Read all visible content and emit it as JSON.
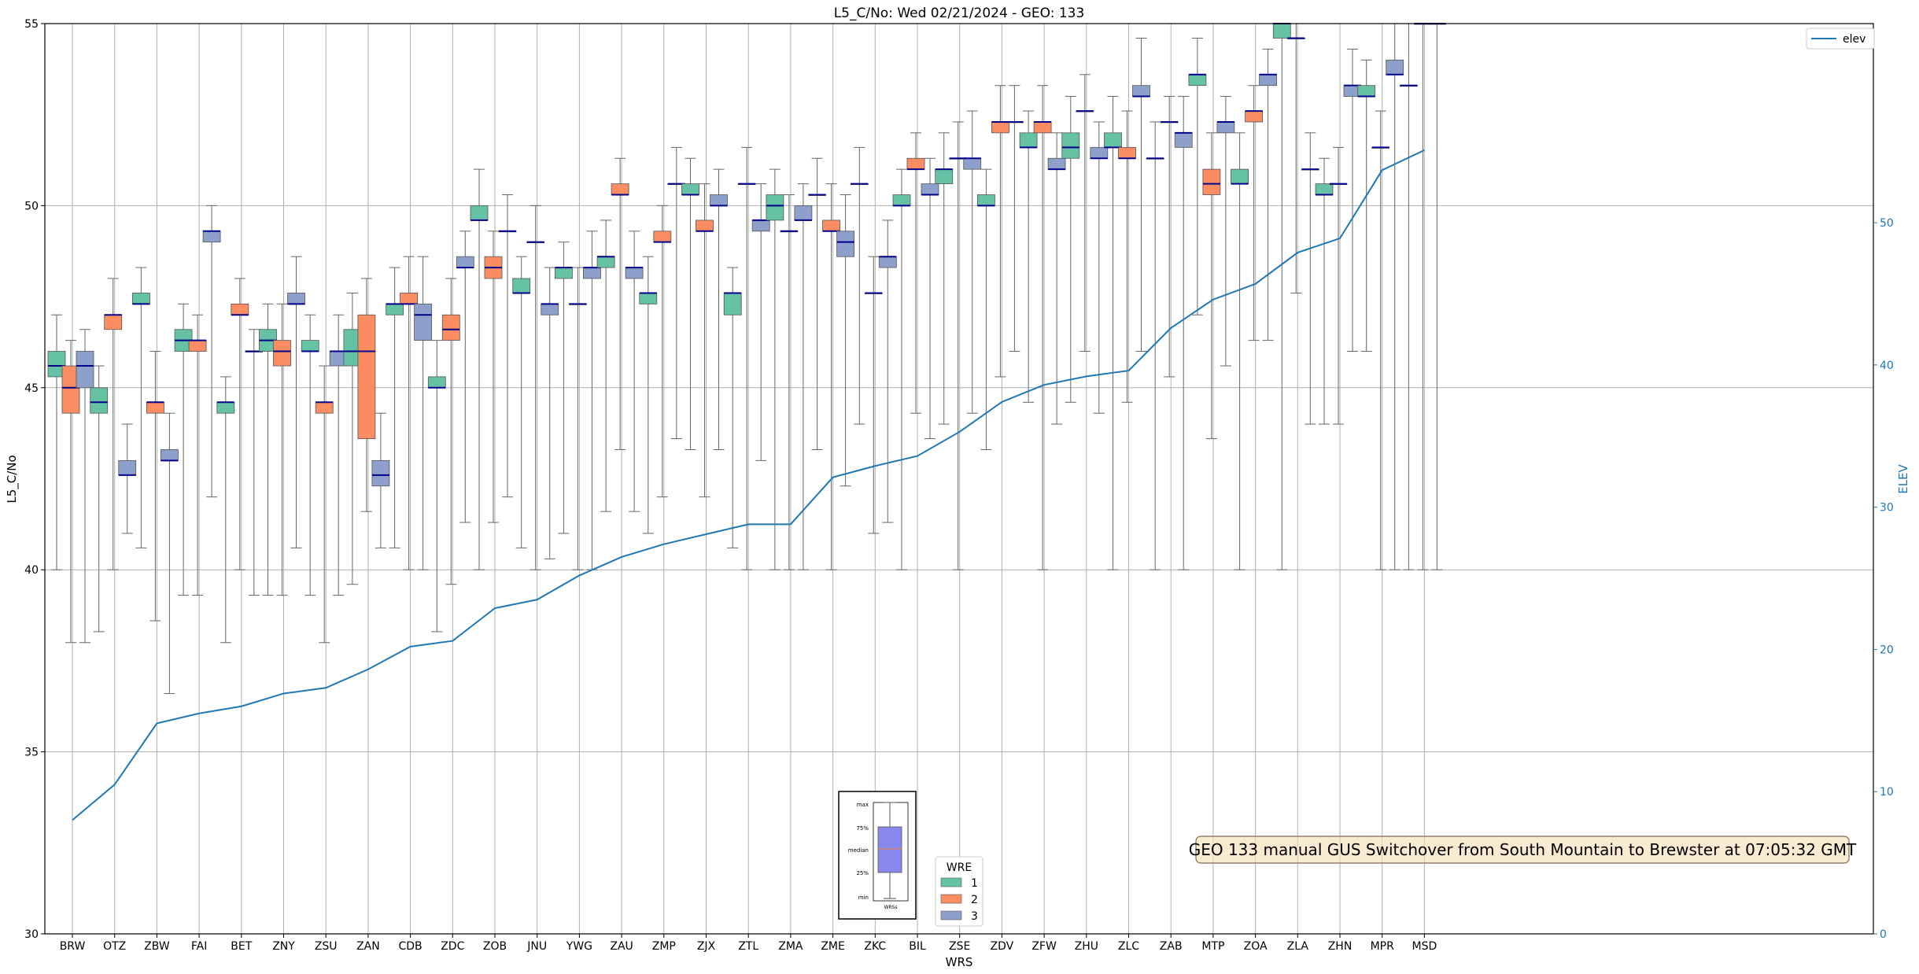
{
  "chart_data": {
    "type": "box",
    "title": "L5_C/No: Wed 02/21/2024 - GEO: 133",
    "xlabel": "WRS",
    "ylabel": "L5_C/No",
    "y2label": "ELEV",
    "ylim": [
      30,
      55
    ],
    "y2lim": [
      0,
      64
    ],
    "yticks": [
      30,
      35,
      40,
      45,
      50,
      55
    ],
    "y2ticks": [
      0,
      10,
      20,
      30,
      40,
      50
    ],
    "grid": true,
    "categories": [
      "BRW",
      "OTZ",
      "ZBW",
      "FAI",
      "BET",
      "ZNY",
      "ZSU",
      "ZAN",
      "CDB",
      "ZDC",
      "ZOB",
      "JNU",
      "YWG",
      "ZAU",
      "ZMP",
      "ZJX",
      "ZTL",
      "ZMA",
      "ZME",
      "ZKC",
      "BIL",
      "ZSE",
      "ZDV",
      "ZFW",
      "ZHU",
      "ZLC",
      "ZAB",
      "MTP",
      "ZOA",
      "ZLA",
      "ZHN",
      "MPR",
      "MSD"
    ],
    "wre_colors": {
      "1": "#66c2a5",
      "2": "#fc8d62",
      "3": "#8da0cb"
    },
    "median_color": "#00008b",
    "elev_color": "#1f77b4",
    "boxes": [
      {
        "c": "BRW",
        "wre": 1,
        "min": 40,
        "q1": 45.3,
        "med": 45.6,
        "q3": 46,
        "max": 47
      },
      {
        "c": "BRW",
        "wre": 2,
        "min": 38,
        "q1": 44.3,
        "med": 45,
        "q3": 45.6,
        "max": 46.3
      },
      {
        "c": "BRW",
        "wre": 3,
        "min": 38,
        "q1": 45,
        "med": 45.6,
        "q3": 46,
        "max": 46.6
      },
      {
        "c": "OTZ",
        "wre": 1,
        "min": 38.3,
        "q1": 44.3,
        "med": 44.6,
        "q3": 45,
        "max": 45.6
      },
      {
        "c": "OTZ",
        "wre": 2,
        "min": 40,
        "q1": 46.6,
        "med": 47,
        "q3": 47,
        "max": 48
      },
      {
        "c": "OTZ",
        "wre": 3,
        "min": 41,
        "q1": 42.6,
        "med": 42.6,
        "q3": 43,
        "max": 44
      },
      {
        "c": "ZBW",
        "wre": 1,
        "min": 40.6,
        "q1": 47.3,
        "med": 47.3,
        "q3": 47.6,
        "max": 48.3
      },
      {
        "c": "ZBW",
        "wre": 2,
        "min": 38.6,
        "q1": 44.3,
        "med": 44.6,
        "q3": 44.6,
        "max": 46
      },
      {
        "c": "ZBW",
        "wre": 3,
        "min": 36.6,
        "q1": 43,
        "med": 43,
        "q3": 43.3,
        "max": 44.3
      },
      {
        "c": "FAI",
        "wre": 1,
        "min": 39.3,
        "q1": 46,
        "med": 46.3,
        "q3": 46.6,
        "max": 47.3
      },
      {
        "c": "FAI",
        "wre": 2,
        "min": 39.3,
        "q1": 46,
        "med": 46.3,
        "q3": 46.3,
        "max": 47
      },
      {
        "c": "FAI",
        "wre": 3,
        "min": 42,
        "q1": 49,
        "med": 49.3,
        "q3": 49.3,
        "max": 50
      },
      {
        "c": "BET",
        "wre": 1,
        "min": 38,
        "q1": 44.3,
        "med": 44.6,
        "q3": 44.6,
        "max": 45.3
      },
      {
        "c": "BET",
        "wre": 2,
        "min": 40,
        "q1": 47,
        "med": 47,
        "q3": 47.3,
        "max": 48
      },
      {
        "c": "BET",
        "wre": 3,
        "min": 39.3,
        "q1": 46,
        "med": 46,
        "q3": 46,
        "max": 46.6
      },
      {
        "c": "ZNY",
        "wre": 1,
        "min": 39.3,
        "q1": 46,
        "med": 46.3,
        "q3": 46.6,
        "max": 47.3
      },
      {
        "c": "ZNY",
        "wre": 2,
        "min": 39.3,
        "q1": 45.6,
        "med": 46,
        "q3": 46.3,
        "max": 47.3
      },
      {
        "c": "ZNY",
        "wre": 3,
        "min": 40.6,
        "q1": 47.3,
        "med": 47.3,
        "q3": 47.6,
        "max": 48.6
      },
      {
        "c": "ZSU",
        "wre": 1,
        "min": 39.3,
        "q1": 46,
        "med": 46,
        "q3": 46.3,
        "max": 47
      },
      {
        "c": "ZSU",
        "wre": 2,
        "min": 38,
        "q1": 44.3,
        "med": 44.6,
        "q3": 44.6,
        "max": 45.6
      },
      {
        "c": "ZSU",
        "wre": 3,
        "min": 39.3,
        "q1": 45.6,
        "med": 46,
        "q3": 46,
        "max": 47
      },
      {
        "c": "ZAN",
        "wre": 1,
        "min": 39.6,
        "q1": 45.6,
        "med": 46,
        "q3": 46.6,
        "max": 47.6
      },
      {
        "c": "ZAN",
        "wre": 2,
        "min": 41.6,
        "q1": 43.6,
        "med": 46,
        "q3": 47,
        "max": 48
      },
      {
        "c": "ZAN",
        "wre": 3,
        "min": 40.6,
        "q1": 42.3,
        "med": 42.6,
        "q3": 43,
        "max": 44.3
      },
      {
        "c": "CDB",
        "wre": 1,
        "min": 40.6,
        "q1": 47,
        "med": 47.3,
        "q3": 47.3,
        "max": 48.3
      },
      {
        "c": "CDB",
        "wre": 2,
        "min": 40,
        "q1": 47.3,
        "med": 47.3,
        "q3": 47.6,
        "max": 48.6
      },
      {
        "c": "CDB",
        "wre": 3,
        "min": 40,
        "q1": 46.3,
        "med": 47,
        "q3": 47.3,
        "max": 48.6
      },
      {
        "c": "ZDC",
        "wre": 1,
        "min": 38.3,
        "q1": 45,
        "med": 45,
        "q3": 45.3,
        "max": 46.3
      },
      {
        "c": "ZDC",
        "wre": 2,
        "min": 39.6,
        "q1": 46.3,
        "med": 46.6,
        "q3": 47,
        "max": 48
      },
      {
        "c": "ZDC",
        "wre": 3,
        "min": 41.3,
        "q1": 48.3,
        "med": 48.3,
        "q3": 48.6,
        "max": 49.3
      },
      {
        "c": "ZOB",
        "wre": 1,
        "min": 40,
        "q1": 49.6,
        "med": 49.6,
        "q3": 50,
        "max": 51
      },
      {
        "c": "ZOB",
        "wre": 2,
        "min": 41.3,
        "q1": 48,
        "med": 48.3,
        "q3": 48.6,
        "max": 49.3
      },
      {
        "c": "ZOB",
        "wre": 3,
        "min": 42,
        "q1": 49.3,
        "med": 49.3,
        "q3": 49.3,
        "max": 50.3
      },
      {
        "c": "JNU",
        "wre": 1,
        "min": 40.6,
        "q1": 47.6,
        "med": 47.6,
        "q3": 48,
        "max": 48.6
      },
      {
        "c": "JNU",
        "wre": 2,
        "min": 40,
        "q1": 49,
        "med": 49,
        "q3": 49,
        "max": 50
      },
      {
        "c": "JNU",
        "wre": 3,
        "min": 40.3,
        "q1": 47,
        "med": 47.3,
        "q3": 47.3,
        "max": 48.3
      },
      {
        "c": "YWG",
        "wre": 1,
        "min": 41,
        "q1": 48,
        "med": 48.3,
        "q3": 48.3,
        "max": 49
      },
      {
        "c": "YWG",
        "wre": 2,
        "min": 40,
        "q1": 47.3,
        "med": 47.3,
        "q3": 47.3,
        "max": 48.3
      },
      {
        "c": "YWG",
        "wre": 3,
        "min": 40,
        "q1": 48,
        "med": 48.3,
        "q3": 48.3,
        "max": 49.3
      },
      {
        "c": "ZAU",
        "wre": 1,
        "min": 41.6,
        "q1": 48.3,
        "med": 48.6,
        "q3": 48.6,
        "max": 49.6
      },
      {
        "c": "ZAU",
        "wre": 2,
        "min": 43.3,
        "q1": 50.3,
        "med": 50.3,
        "q3": 50.6,
        "max": 51.3
      },
      {
        "c": "ZAU",
        "wre": 3,
        "min": 41.6,
        "q1": 48,
        "med": 48.3,
        "q3": 48.3,
        "max": 49.3
      },
      {
        "c": "ZMP",
        "wre": 1,
        "min": 41,
        "q1": 47.3,
        "med": 47.6,
        "q3": 47.6,
        "max": 48.6
      },
      {
        "c": "ZMP",
        "wre": 2,
        "min": 42,
        "q1": 49,
        "med": 49,
        "q3": 49.3,
        "max": 50
      },
      {
        "c": "ZMP",
        "wre": 3,
        "min": 43.6,
        "q1": 50.6,
        "med": 50.6,
        "q3": 50.6,
        "max": 51.6
      },
      {
        "c": "ZJX",
        "wre": 1,
        "min": 43.3,
        "q1": 50.3,
        "med": 50.3,
        "q3": 50.6,
        "max": 51.3
      },
      {
        "c": "ZJX",
        "wre": 2,
        "min": 42,
        "q1": 49.3,
        "med": 49.3,
        "q3": 49.6,
        "max": 50.6
      },
      {
        "c": "ZJX",
        "wre": 3,
        "min": 43.3,
        "q1": 50,
        "med": 50,
        "q3": 50.3,
        "max": 51
      },
      {
        "c": "ZTL",
        "wre": 1,
        "min": 40.6,
        "q1": 47,
        "med": 47.6,
        "q3": 47.6,
        "max": 48.3
      },
      {
        "c": "ZTL",
        "wre": 2,
        "min": 40,
        "q1": 50.6,
        "med": 50.6,
        "q3": 50.6,
        "max": 51.6
      },
      {
        "c": "ZTL",
        "wre": 3,
        "min": 43,
        "q1": 49.3,
        "med": 49.6,
        "q3": 49.6,
        "max": 50.6
      },
      {
        "c": "ZMA",
        "wre": 1,
        "min": 40,
        "q1": 49.6,
        "med": 50,
        "q3": 50.3,
        "max": 51
      },
      {
        "c": "ZMA",
        "wre": 2,
        "min": 40,
        "q1": 49.3,
        "med": 49.3,
        "q3": 49.3,
        "max": 50.3
      },
      {
        "c": "ZMA",
        "wre": 3,
        "min": 40,
        "q1": 49.6,
        "med": 49.6,
        "q3": 50,
        "max": 50.6
      },
      {
        "c": "ZME",
        "wre": 1,
        "min": 43.3,
        "q1": 50.3,
        "med": 50.3,
        "q3": 50.3,
        "max": 51.3
      },
      {
        "c": "ZME",
        "wre": 2,
        "min": 40,
        "q1": 49.3,
        "med": 49.3,
        "q3": 49.6,
        "max": 50.6
      },
      {
        "c": "ZME",
        "wre": 3,
        "min": 42.3,
        "q1": 48.6,
        "med": 49,
        "q3": 49.3,
        "max": 50.3
      },
      {
        "c": "ZKC",
        "wre": 1,
        "min": 44,
        "q1": 50.6,
        "med": 50.6,
        "q3": 50.6,
        "max": 51.6
      },
      {
        "c": "ZKC",
        "wre": 2,
        "min": 41,
        "q1": 47.6,
        "med": 47.6,
        "q3": 47.6,
        "max": 48.6
      },
      {
        "c": "ZKC",
        "wre": 3,
        "min": 41.3,
        "q1": 48.3,
        "med": 48.6,
        "q3": 48.6,
        "max": 49.6
      },
      {
        "c": "BIL",
        "wre": 1,
        "min": 40,
        "q1": 50,
        "med": 50,
        "q3": 50.3,
        "max": 51
      },
      {
        "c": "BIL",
        "wre": 2,
        "min": 44.3,
        "q1": 51,
        "med": 51,
        "q3": 51.3,
        "max": 52
      },
      {
        "c": "BIL",
        "wre": 3,
        "min": 43.6,
        "q1": 50.3,
        "med": 50.3,
        "q3": 50.6,
        "max": 51.3
      },
      {
        "c": "ZSE",
        "wre": 1,
        "min": 44,
        "q1": 50.6,
        "med": 51,
        "q3": 51,
        "max": 52
      },
      {
        "c": "ZSE",
        "wre": 2,
        "min": 40,
        "q1": 51.3,
        "med": 51.3,
        "q3": 51.3,
        "max": 52.3
      },
      {
        "c": "ZSE",
        "wre": 3,
        "min": 44.3,
        "q1": 51,
        "med": 51.3,
        "q3": 51.3,
        "max": 52.6
      },
      {
        "c": "ZDV",
        "wre": 1,
        "min": 43.3,
        "q1": 50,
        "med": 50,
        "q3": 50.3,
        "max": 51
      },
      {
        "c": "ZDV",
        "wre": 2,
        "min": 45.3,
        "q1": 52,
        "med": 52.3,
        "q3": 52.3,
        "max": 53.3
      },
      {
        "c": "ZDV",
        "wre": 3,
        "min": 46,
        "q1": 52.3,
        "med": 52.3,
        "q3": 52.3,
        "max": 53.3
      },
      {
        "c": "ZFW",
        "wre": 1,
        "min": 44.6,
        "q1": 51.6,
        "med": 51.6,
        "q3": 52,
        "max": 52.6
      },
      {
        "c": "ZFW",
        "wre": 2,
        "min": 40,
        "q1": 52,
        "med": 52.3,
        "q3": 52.3,
        "max": 53.3
      },
      {
        "c": "ZFW",
        "wre": 3,
        "min": 44,
        "q1": 51,
        "med": 51,
        "q3": 51.3,
        "max": 52
      },
      {
        "c": "ZHU",
        "wre": 1,
        "min": 44.6,
        "q1": 51.3,
        "med": 51.6,
        "q3": 52,
        "max": 53
      },
      {
        "c": "ZHU",
        "wre": 2,
        "min": 46,
        "q1": 52.6,
        "med": 52.6,
        "q3": 52.6,
        "max": 53.6
      },
      {
        "c": "ZHU",
        "wre": 3,
        "min": 44.3,
        "q1": 51.3,
        "med": 51.3,
        "q3": 51.6,
        "max": 52.3
      },
      {
        "c": "ZLC",
        "wre": 1,
        "min": 40,
        "q1": 51.6,
        "med": 51.6,
        "q3": 52,
        "max": 53
      },
      {
        "c": "ZLC",
        "wre": 2,
        "min": 44.6,
        "q1": 51.3,
        "med": 51.3,
        "q3": 51.6,
        "max": 52.6
      },
      {
        "c": "ZLC",
        "wre": 3,
        "min": 46,
        "q1": 53,
        "med": 53,
        "q3": 53.3,
        "max": 54.6
      },
      {
        "c": "ZAB",
        "wre": 1,
        "min": 40,
        "q1": 51.3,
        "med": 51.3,
        "q3": 51.3,
        "max": 52.3
      },
      {
        "c": "ZAB",
        "wre": 2,
        "min": 45.3,
        "q1": 52.3,
        "med": 52.3,
        "q3": 52.3,
        "max": 53
      },
      {
        "c": "ZAB",
        "wre": 3,
        "min": 40,
        "q1": 51.6,
        "med": 52,
        "q3": 52,
        "max": 53
      },
      {
        "c": "MTP",
        "wre": 1,
        "min": 47,
        "q1": 53.3,
        "med": 53.6,
        "q3": 53.6,
        "max": 54.6
      },
      {
        "c": "MTP",
        "wre": 2,
        "min": 43.6,
        "q1": 50.3,
        "med": 50.6,
        "q3": 51,
        "max": 52
      },
      {
        "c": "MTP",
        "wre": 3,
        "min": 45.6,
        "q1": 52,
        "med": 52.3,
        "q3": 52.3,
        "max": 53
      },
      {
        "c": "ZOA",
        "wre": 1,
        "min": 40,
        "q1": 50.6,
        "med": 50.6,
        "q3": 51,
        "max": 52
      },
      {
        "c": "ZOA",
        "wre": 2,
        "min": 46.3,
        "q1": 52.3,
        "med": 52.6,
        "q3": 52.6,
        "max": 53.3
      },
      {
        "c": "ZOA",
        "wre": 3,
        "min": 46.3,
        "q1": 53.3,
        "med": 53.6,
        "q3": 53.6,
        "max": 54.3
      },
      {
        "c": "ZLA",
        "wre": 1,
        "min": 40,
        "q1": 54.6,
        "med": 55,
        "q3": 55,
        "max": 55
      },
      {
        "c": "ZLA",
        "wre": 2,
        "min": 47.6,
        "q1": 54.6,
        "med": 54.6,
        "q3": 54.6,
        "max": 55
      },
      {
        "c": "ZLA",
        "wre": 3,
        "min": 44,
        "q1": 51,
        "med": 51,
        "q3": 51,
        "max": 52
      },
      {
        "c": "ZHN",
        "wre": 1,
        "min": 44,
        "q1": 50.3,
        "med": 50.3,
        "q3": 50.6,
        "max": 51.3
      },
      {
        "c": "ZHN",
        "wre": 2,
        "min": 44,
        "q1": 50.6,
        "med": 50.6,
        "q3": 50.6,
        "max": 51.6
      },
      {
        "c": "ZHN",
        "wre": 3,
        "min": 46,
        "q1": 53,
        "med": 53.3,
        "q3": 53.3,
        "max": 54.3
      },
      {
        "c": "MPR",
        "wre": 1,
        "min": 46,
        "q1": 53,
        "med": 53,
        "q3": 53.3,
        "max": 54
      },
      {
        "c": "MPR",
        "wre": 2,
        "min": 40,
        "q1": 51.6,
        "med": 51.6,
        "q3": 51.6,
        "max": 52.6
      },
      {
        "c": "MPR",
        "wre": 3,
        "min": 40,
        "q1": 53.6,
        "med": 53.6,
        "q3": 54,
        "max": 55
      },
      {
        "c": "MSD",
        "wre": 1,
        "min": 40,
        "q1": 53.3,
        "med": 53.3,
        "q3": 53.3,
        "max": 55
      },
      {
        "c": "MSD",
        "wre": 2,
        "min": 40,
        "q1": 55,
        "med": 55,
        "q3": 55,
        "max": 55
      },
      {
        "c": "MSD",
        "wre": 3,
        "min": 40,
        "q1": 55,
        "med": 55,
        "q3": 55,
        "max": 55
      }
    ],
    "elev": {
      "name": "elev",
      "values": [
        8,
        10.5,
        14.8,
        15.5,
        16,
        16.9,
        17.3,
        18.6,
        20.2,
        20.6,
        22.9,
        23.5,
        25.2,
        26.5,
        27.4,
        28.1,
        28.8,
        28.8,
        32.1,
        32.9,
        33.6,
        35.3,
        37.4,
        38.6,
        39.2,
        39.6,
        42.6,
        44.6,
        45.7,
        47.9,
        48.9,
        53.7,
        55.1
      ]
    },
    "legend": {
      "title": "WRE",
      "entries": [
        "1",
        "2",
        "3"
      ],
      "placement": "lower-center"
    },
    "elev_legend": {
      "entries": [
        "elev"
      ],
      "placement": "top-right"
    },
    "inset_legend": {
      "labels": [
        "max",
        "75%",
        "median",
        "25%",
        "min"
      ],
      "xlabel": "WRSs"
    },
    "annotation": "GEO 133 manual GUS Switchover from South Mountain to Brewster at 07:05:32 GMT"
  }
}
